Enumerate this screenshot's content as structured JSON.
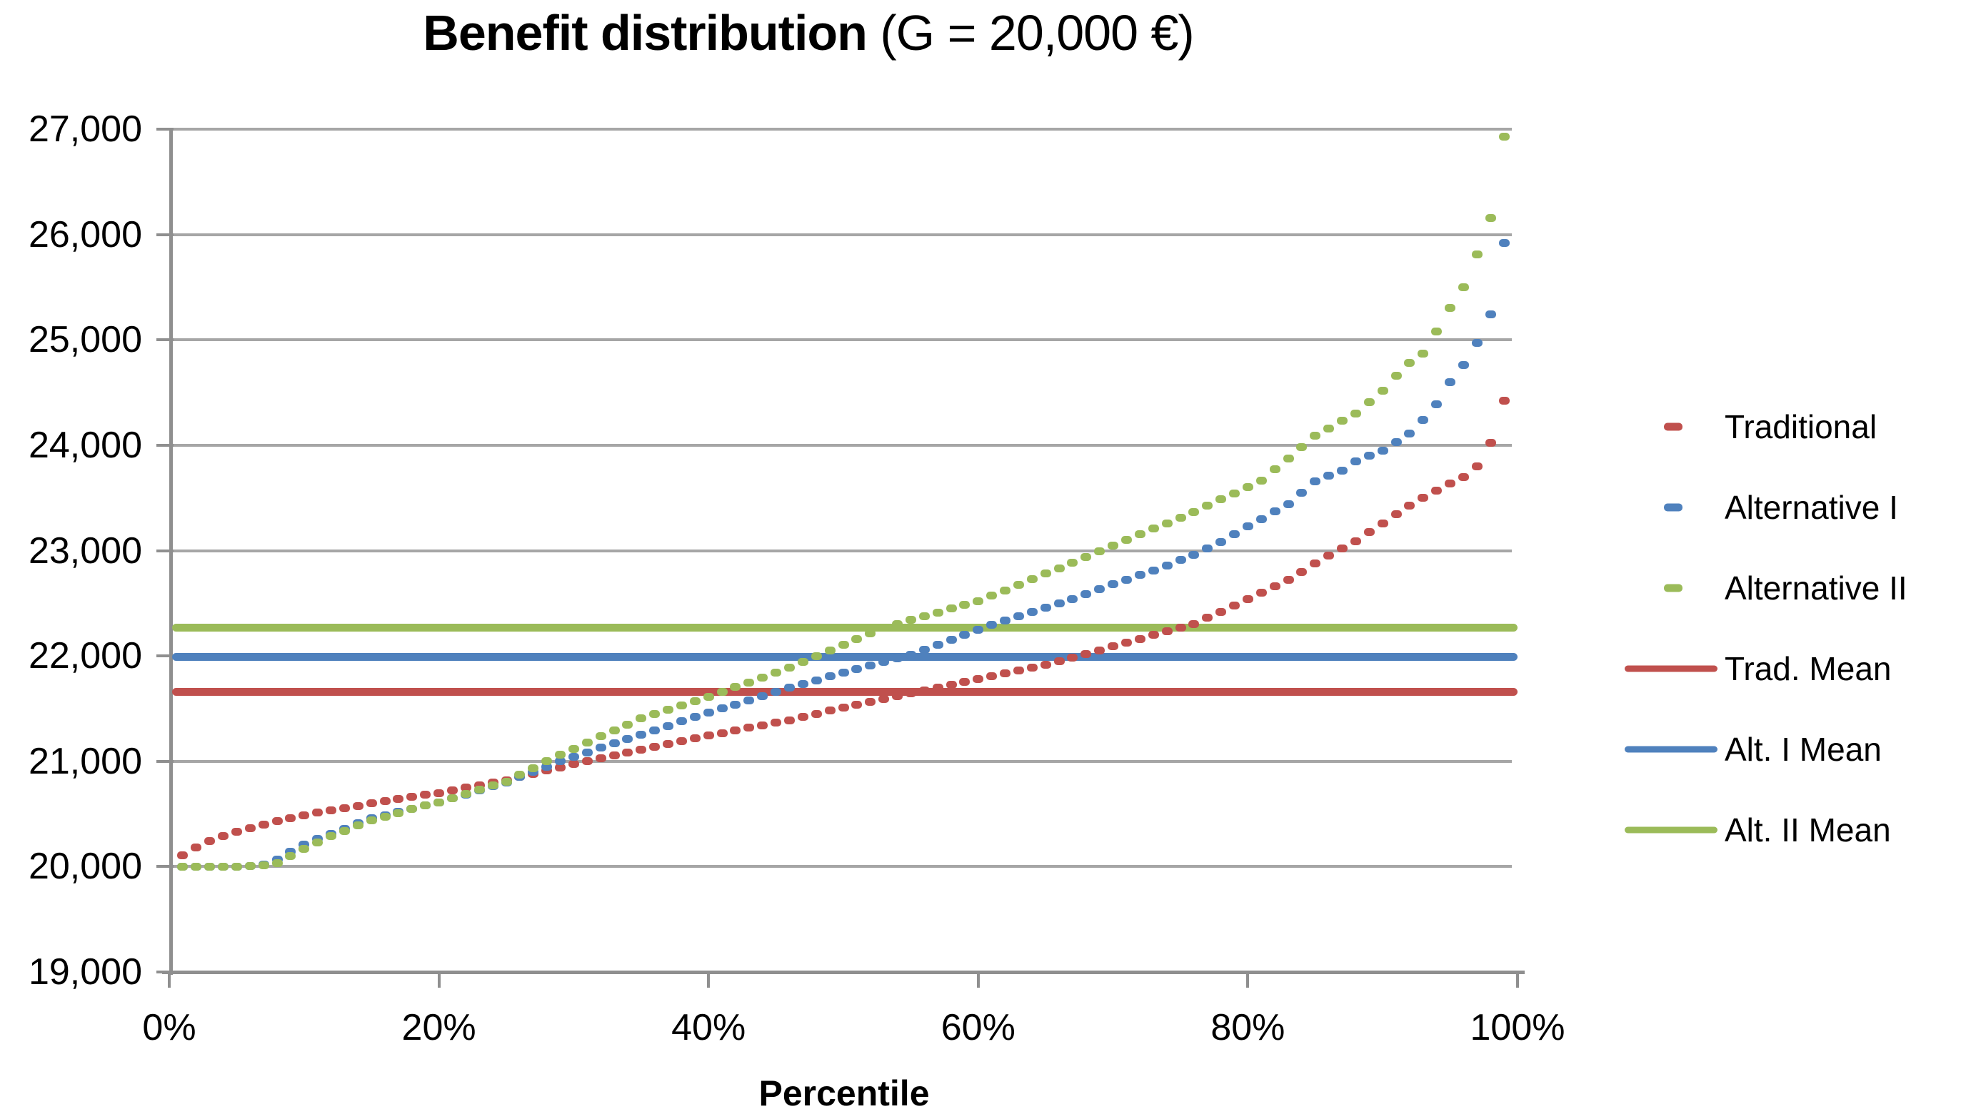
{
  "title": {
    "bold": "Benefit distribution",
    "normal": " (G = 20,000 €)"
  },
  "colors": {
    "traditional": "#C0504D",
    "alternative1": "#4F81BD",
    "alternative2": "#9BBB59",
    "gridline": "#A6A6A6",
    "axis": "#8F8F8F",
    "text": "#000000",
    "background": "#FFFFFF"
  },
  "axes": {
    "y": {
      "tick_labels": [
        "27,000",
        "26,000",
        "25,000",
        "24,000",
        "23,000",
        "22,000",
        "21,000",
        "20,000",
        "19,000"
      ],
      "min": 19000,
      "max": 27000,
      "step": 1000
    },
    "x": {
      "tick_labels": [
        "0%",
        "20%",
        "40%",
        "60%",
        "80%",
        "100%"
      ],
      "tick_values": [
        0,
        20,
        40,
        60,
        80,
        100
      ],
      "min": 0,
      "max": 100,
      "label": "Percentile"
    }
  },
  "legend": [
    {
      "label": "Traditional",
      "marker": "dash",
      "color": "#C0504D"
    },
    {
      "label": "Alternative I",
      "marker": "dash",
      "color": "#4F81BD"
    },
    {
      "label": "Alternative II",
      "marker": "dash",
      "color": "#9BBB59"
    },
    {
      "label": "Trad. Mean",
      "marker": "line",
      "color": "#C0504D"
    },
    {
      "label": "Alt. I Mean",
      "marker": "line",
      "color": "#4F81BD"
    },
    {
      "label": "Alt. II Mean",
      "marker": "line",
      "color": "#9BBB59"
    }
  ],
  "chart_data": {
    "type": "scatter",
    "title": "Benefit distribution (G = 20,000 €)",
    "xlabel": "Percentile",
    "ylabel": "",
    "xlim": [
      0,
      100
    ],
    "ylim": [
      19000,
      27000
    ],
    "grid": "horizontal",
    "legend_position": "right",
    "x_percentiles": [
      1,
      2,
      3,
      4,
      5,
      6,
      7,
      8,
      9,
      10,
      11,
      12,
      13,
      14,
      15,
      16,
      17,
      18,
      19,
      20,
      21,
      22,
      23,
      24,
      25,
      26,
      27,
      28,
      29,
      30,
      31,
      32,
      33,
      34,
      35,
      36,
      37,
      38,
      39,
      40,
      41,
      42,
      43,
      44,
      45,
      46,
      47,
      48,
      49,
      50,
      51,
      52,
      53,
      54,
      55,
      56,
      57,
      58,
      59,
      60,
      61,
      62,
      63,
      64,
      65,
      66,
      67,
      68,
      69,
      70,
      71,
      72,
      73,
      74,
      75,
      76,
      77,
      78,
      79,
      80,
      81,
      82,
      83,
      84,
      85,
      86,
      87,
      88,
      89,
      90,
      91,
      92,
      93,
      94,
      95,
      96,
      97,
      98,
      99
    ],
    "series": [
      {
        "name": "Traditional",
        "color": "#C0504D",
        "style": "round-dash",
        "values": [
          20110,
          20180,
          20245,
          20290,
          20330,
          20363,
          20397,
          20430,
          20460,
          20490,
          20513,
          20535,
          20557,
          20578,
          20600,
          20620,
          20640,
          20660,
          20680,
          20700,
          20724,
          20748,
          20772,
          20796,
          20820,
          20851,
          20882,
          20913,
          20944,
          20975,
          21002,
          21029,
          21056,
          21083,
          21110,
          21137,
          21164,
          21191,
          21218,
          21245,
          21269,
          21293,
          21317,
          21341,
          21366,
          21390,
          21420,
          21450,
          21480,
          21510,
          21537,
          21563,
          21590,
          21617,
          21643,
          21670,
          21698,
          21725,
          21753,
          21780,
          21807,
          21834,
          21861,
          21888,
          21915,
          21950,
          21985,
          22020,
          22055,
          22090,
          22127,
          22163,
          22200,
          22233,
          22267,
          22300,
          22360,
          22420,
          22480,
          22540,
          22600,
          22660,
          22720,
          22800,
          22880,
          22950,
          23020,
          23090,
          23175,
          23260,
          23345,
          23430,
          23500,
          23570,
          23640,
          23700,
          23800,
          24020,
          24420
        ]
      },
      {
        "name": "Alternative I",
        "color": "#4F81BD",
        "style": "round-dash",
        "values": [
          20000,
          20000,
          20000,
          20000,
          20000,
          20005,
          20020,
          20070,
          20140,
          20210,
          20260,
          20310,
          20360,
          20410,
          20460,
          20490,
          20520,
          20550,
          20580,
          20610,
          20648,
          20686,
          20724,
          20762,
          20800,
          20850,
          20900,
          20950,
          21000,
          21043,
          21085,
          21128,
          21170,
          21213,
          21255,
          21296,
          21337,
          21378,
          21419,
          21460,
          21500,
          21540,
          21580,
          21620,
          21660,
          21700,
          21735,
          21770,
          21805,
          21840,
          21874,
          21908,
          21942,
          21976,
          22010,
          22058,
          22106,
          22154,
          22202,
          22250,
          22293,
          22335,
          22378,
          22420,
          22460,
          22500,
          22540,
          22587,
          22633,
          22680,
          22723,
          22767,
          22810,
          22860,
          22910,
          22960,
          23020,
          23080,
          23155,
          23230,
          23300,
          23370,
          23440,
          23550,
          23660,
          23710,
          23760,
          23850,
          23900,
          23950,
          24030,
          24110,
          24240,
          24390,
          24600,
          24760,
          24970,
          25240,
          25920
        ]
      },
      {
        "name": "Alternative II",
        "color": "#9BBB59",
        "style": "round-dash",
        "values": [
          20000,
          20000,
          20000,
          20000,
          20000,
          20005,
          20015,
          20030,
          20100,
          20170,
          20230,
          20290,
          20340,
          20390,
          20440,
          20475,
          20510,
          20545,
          20580,
          20610,
          20650,
          20690,
          20730,
          20770,
          20805,
          20870,
          20935,
          21000,
          21060,
          21120,
          21180,
          21240,
          21295,
          21350,
          21405,
          21446,
          21487,
          21528,
          21569,
          21610,
          21657,
          21703,
          21750,
          21797,
          21843,
          21890,
          21944,
          21998,
          22052,
          22105,
          22159,
          22213,
          22267,
          22303,
          22340,
          22376,
          22412,
          22448,
          22484,
          22520,
          22572,
          22624,
          22676,
          22728,
          22780,
          22834,
          22888,
          22942,
          22996,
          23050,
          23103,
          23155,
          23208,
          23260,
          23313,
          23365,
          23425,
          23485,
          23545,
          23605,
          23665,
          23770,
          23875,
          23983,
          24090,
          24160,
          24230,
          24300,
          24410,
          24520,
          24660,
          24780,
          24870,
          25080,
          25300,
          25500,
          25810,
          26160,
          26930
        ]
      }
    ],
    "mean_lines": [
      {
        "name": "Trad. Mean",
        "value": 21660,
        "color": "#C0504D"
      },
      {
        "name": "Alt. I Mean",
        "value": 21990,
        "color": "#4F81BD"
      },
      {
        "name": "Alt. II Mean",
        "value": 22270,
        "color": "#9BBB59"
      }
    ]
  }
}
